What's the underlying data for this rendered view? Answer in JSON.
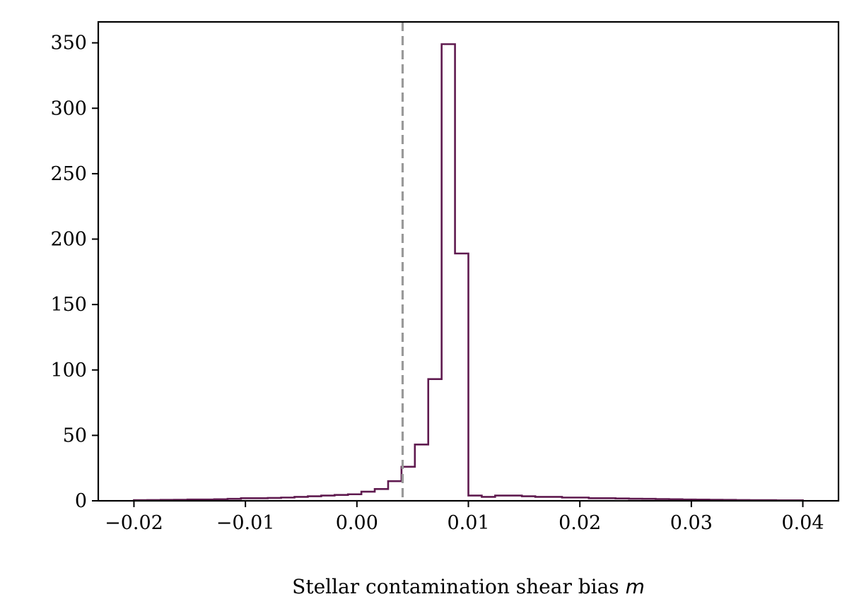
{
  "chart_data": {
    "type": "histogram",
    "xlabel_prefix": "Stellar contamination shear bias ",
    "xlabel_var": "m",
    "ylabel": "",
    "xlim": [
      -0.0232,
      0.0432
    ],
    "ylim": [
      0,
      366
    ],
    "xticks": [
      -0.02,
      -0.01,
      0.0,
      0.01,
      0.02,
      0.03,
      0.04
    ],
    "xtick_labels": [
      "−0.02",
      "−0.01",
      "0.00",
      "0.01",
      "0.02",
      "0.03",
      "0.04"
    ],
    "yticks": [
      0,
      50,
      100,
      150,
      200,
      250,
      300,
      350
    ],
    "ytick_labels": [
      "0",
      "50",
      "100",
      "150",
      "200",
      "250",
      "300",
      "350"
    ],
    "bin_start": -0.02,
    "bin_width": 0.0012,
    "counts": [
      0.5,
      0.6,
      0.7,
      0.8,
      1,
      1,
      1.2,
      1.5,
      2,
      2,
      2.2,
      2.5,
      3,
      3.5,
      4,
      4.5,
      5,
      7,
      9,
      15,
      26,
      43,
      93,
      349,
      189,
      4,
      3,
      4,
      4,
      3.5,
      3,
      3,
      2.5,
      2.5,
      2,
      2,
      1.8,
      1.6,
      1.5,
      1.3,
      1.2,
      1,
      0.9,
      0.8,
      0.7,
      0.6,
      0.5,
      0.5,
      0.4,
      0.4
    ],
    "series_color": "#5f1a4f",
    "reference_line": {
      "x": 0.0041,
      "style": "dashed",
      "color": "#999999"
    },
    "grid": false,
    "legend": "none"
  }
}
